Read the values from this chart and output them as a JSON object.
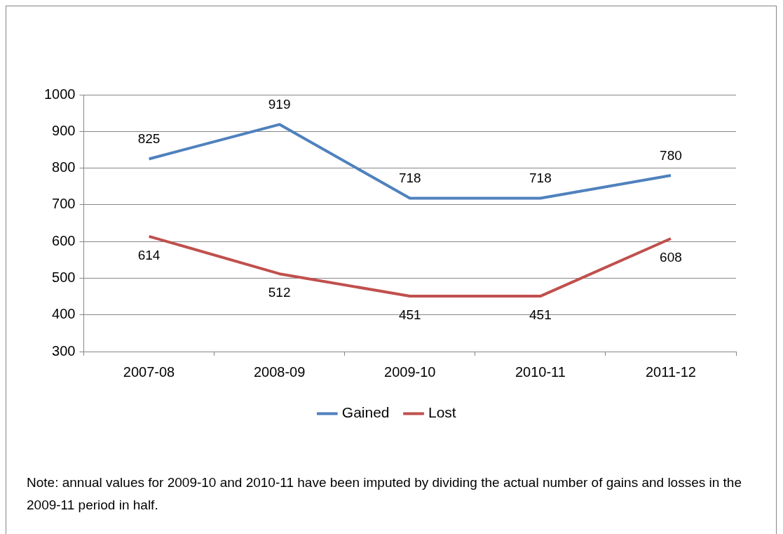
{
  "chart_data": {
    "type": "line",
    "categories": [
      "2007-08",
      "2008-09",
      "2009-10",
      "2010-11",
      "2011-12"
    ],
    "series": [
      {
        "name": "Gained",
        "color": "#4f81bd",
        "values": [
          825,
          919,
          718,
          718,
          780
        ]
      },
      {
        "name": "Lost",
        "color": "#c0504d",
        "values": [
          614,
          512,
          451,
          451,
          608
        ]
      }
    ],
    "ylim": [
      300,
      1000
    ],
    "yticks": [
      300,
      400,
      500,
      600,
      700,
      800,
      900,
      1000
    ],
    "grid": "y",
    "legend": "bottom",
    "data_labels": true,
    "marker": "none",
    "line_style": "solid",
    "annotations": [
      "Note:  annual values for 2009-10 and 2010-11 have been imputed by dividing the actual number of gains and losses in the 2009-11 period in half."
    ]
  }
}
